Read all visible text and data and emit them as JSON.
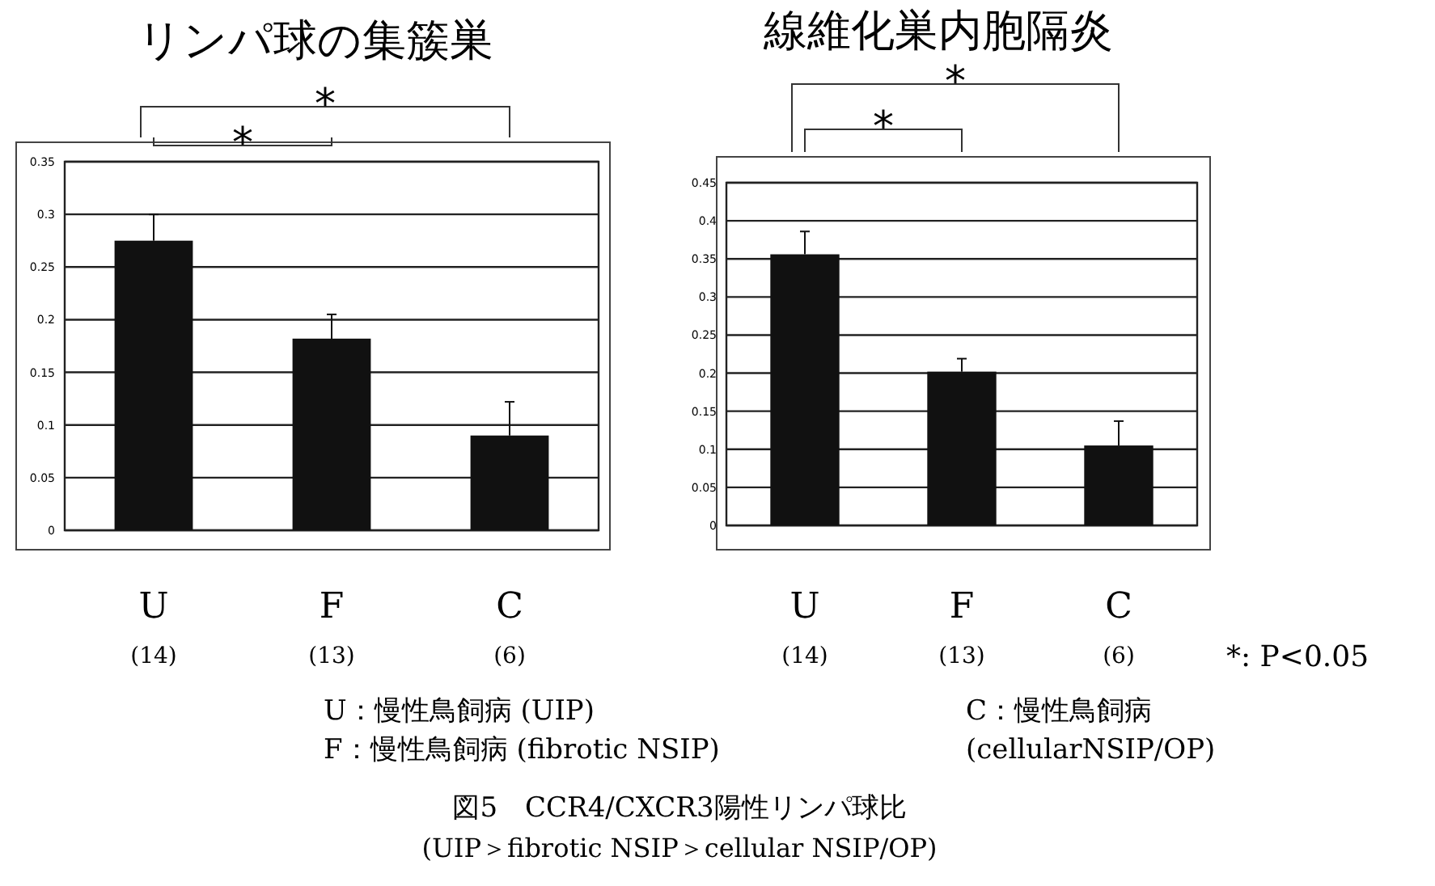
{
  "chart_data": [
    {
      "type": "bar",
      "title": "リンパ球の集簇巣",
      "categories": [
        "U",
        "F",
        "C"
      ],
      "values": [
        0.275,
        0.182,
        0.09
      ],
      "errors": [
        0.025,
        0.023,
        0.032
      ],
      "color": "#111111",
      "ylim": [
        0,
        0.35
      ],
      "yticks": [
        0,
        0.05,
        0.1,
        0.15,
        0.2,
        0.25,
        0.3,
        0.35
      ],
      "grid": "y",
      "annotations": [
        "*",
        "*",
        "(14)",
        "(13)",
        "(6)"
      ]
    },
    {
      "type": "bar",
      "title": "線維化巣内胞隔炎",
      "categories": [
        "U",
        "F",
        "C"
      ],
      "values": [
        0.356,
        0.202,
        0.105
      ],
      "errors": [
        0.03,
        0.017,
        0.032
      ],
      "color": "#111111",
      "ylim": [
        0,
        0.45
      ],
      "yticks": [
        0,
        0.05,
        0.1,
        0.15,
        0.2,
        0.25,
        0.3,
        0.35,
        0.4,
        0.45
      ],
      "grid": "y",
      "annotations": [
        "*",
        "*",
        "(14)",
        "(13)",
        "(6)"
      ]
    },
    {
      "type": "other",
      "annotations": [
        "*: P<0.05",
        "U：慢性鳥飼病 (UIP)",
        "F：慢性鳥飼病 (fibrotic NSIP)",
        "C：慢性鳥飼病",
        "(cellularNSIP/OP)",
        "図5　CCR4/CXCR3陽性リンパ球比",
        "(UIP＞fibrotic NSIP＞cellular NSIP/OP)"
      ]
    }
  ]
}
